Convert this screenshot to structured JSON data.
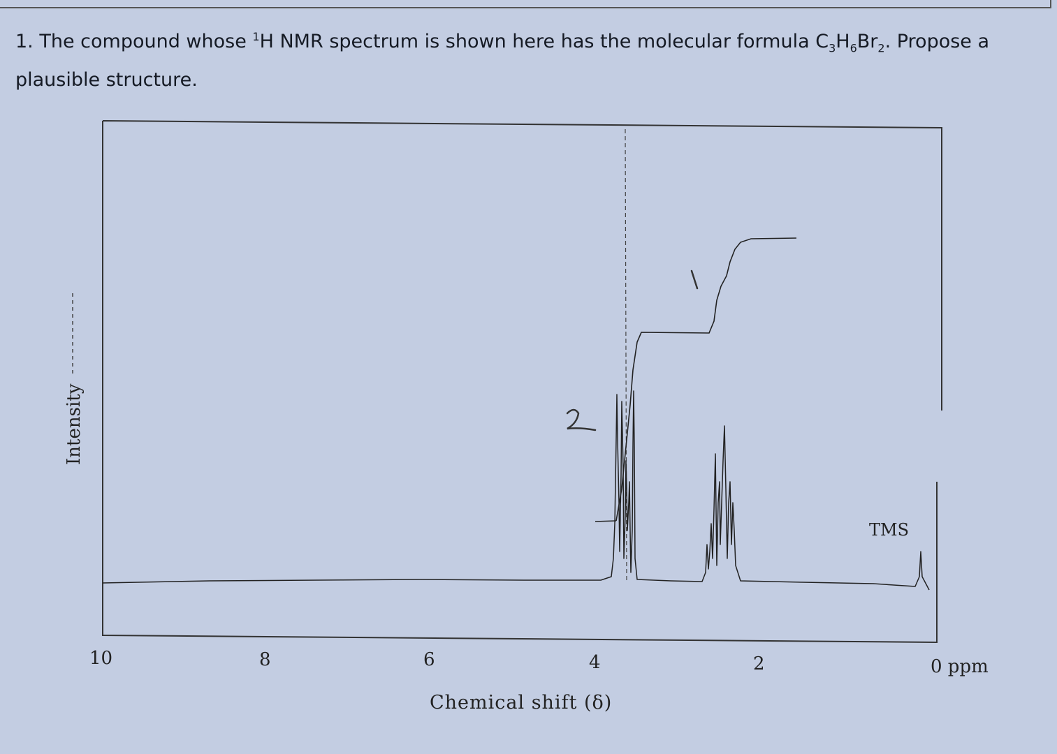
{
  "question": {
    "number": "1.",
    "text_before_sup": "The compound whose ",
    "sup": "1",
    "text_after_sup": "H NMR spectrum is shown here has the molecular formula C",
    "sub1": "3",
    "h": "H",
    "sub2": "6",
    "br": "Br",
    "sub3": "2",
    "text_end": ". Propose a plausible structure."
  },
  "chart_data": {
    "type": "line",
    "title": "",
    "xlabel": "Chemical shift (δ)",
    "ylabel": "Intensity",
    "x_ticks": [
      "10",
      "8",
      "6",
      "4",
      "2",
      "0 ppm"
    ],
    "xlim": [
      10,
      0
    ],
    "peaks": [
      {
        "shift_ppm": 3.6,
        "multiplicity": "triplet",
        "relative_integration": 2,
        "handwritten_label": "2"
      },
      {
        "shift_ppm": 2.3,
        "multiplicity": "sextet",
        "relative_integration": 1,
        "handwritten_label": "1"
      },
      {
        "shift_ppm": 0.0,
        "label": "TMS"
      }
    ],
    "annotations": [
      "TMS",
      "2",
      "1"
    ]
  }
}
